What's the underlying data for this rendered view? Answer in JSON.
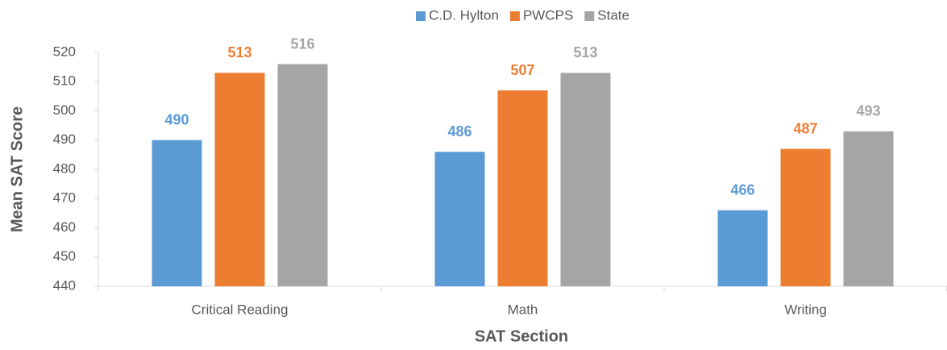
{
  "chart_data": {
    "type": "bar",
    "categories": [
      "Critical Reading",
      "Math",
      "Writing"
    ],
    "series": [
      {
        "name": "C.D. Hylton",
        "color": "#5b9bd5",
        "values": [
          490,
          486,
          466
        ]
      },
      {
        "name": "PWCPS",
        "color": "#ed7d31",
        "values": [
          513,
          507,
          487
        ]
      },
      {
        "name": "State",
        "color": "#a5a5a5",
        "values": [
          516,
          513,
          493
        ]
      }
    ],
    "x_label": "SAT Section",
    "y_label": "Mean SAT Score",
    "ylim": [
      440,
      520
    ],
    "yticks": [
      440,
      450,
      460,
      470,
      480,
      490,
      500,
      510,
      520
    ],
    "grid": false,
    "legend": "top"
  }
}
